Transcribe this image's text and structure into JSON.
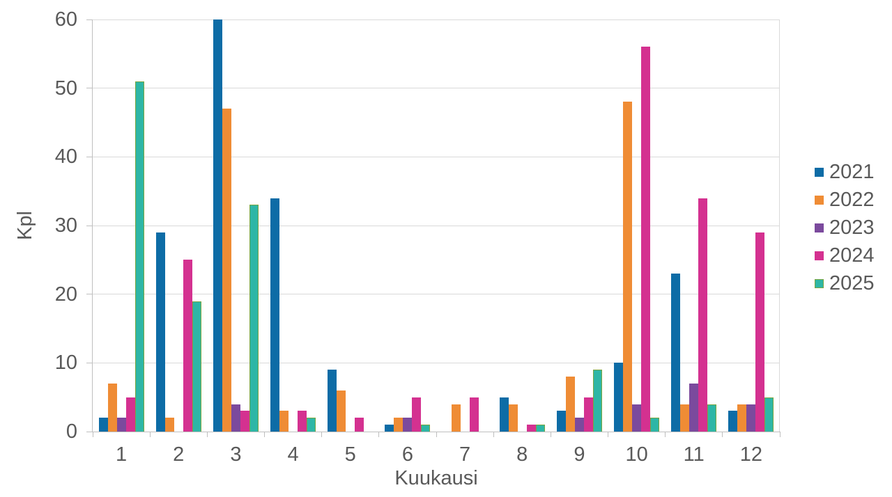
{
  "chart_data": {
    "type": "bar",
    "title": "",
    "xlabel": "Kuukausi",
    "ylabel": "Kpl",
    "ylim": [
      0,
      60
    ],
    "yticks": [
      0,
      10,
      20,
      30,
      40,
      50,
      60
    ],
    "grid": true,
    "legend_position": "right",
    "categories": [
      "1",
      "2",
      "3",
      "4",
      "5",
      "6",
      "7",
      "8",
      "9",
      "10",
      "11",
      "12"
    ],
    "series": [
      {
        "name": "2021",
        "color": "#0d6ca6",
        "values": [
          2,
          29,
          60,
          34,
          9,
          1,
          0,
          5,
          3,
          10,
          23,
          3
        ]
      },
      {
        "name": "2022",
        "color": "#ef8c35",
        "values": [
          7,
          2,
          47,
          3,
          6,
          2,
          4,
          4,
          8,
          48,
          4,
          4
        ]
      },
      {
        "name": "2023",
        "color": "#7b4a9d",
        "values": [
          2,
          0,
          4,
          0,
          0,
          2,
          0,
          0,
          2,
          4,
          7,
          4
        ]
      },
      {
        "name": "2024",
        "color": "#d43190",
        "values": [
          5,
          25,
          3,
          3,
          2,
          5,
          5,
          1,
          5,
          56,
          34,
          29
        ]
      },
      {
        "name": "2025",
        "color": "#2eb6a6",
        "border_color": "#7aa53e",
        "values": [
          51,
          19,
          33,
          2,
          0,
          1,
          0,
          1,
          9,
          2,
          4,
          5
        ]
      }
    ],
    "style_colors": {
      "gridline": "#d9d9d9",
      "axis_line": "#bfbfbf",
      "text": "#595959",
      "background": "#ffffff"
    }
  }
}
